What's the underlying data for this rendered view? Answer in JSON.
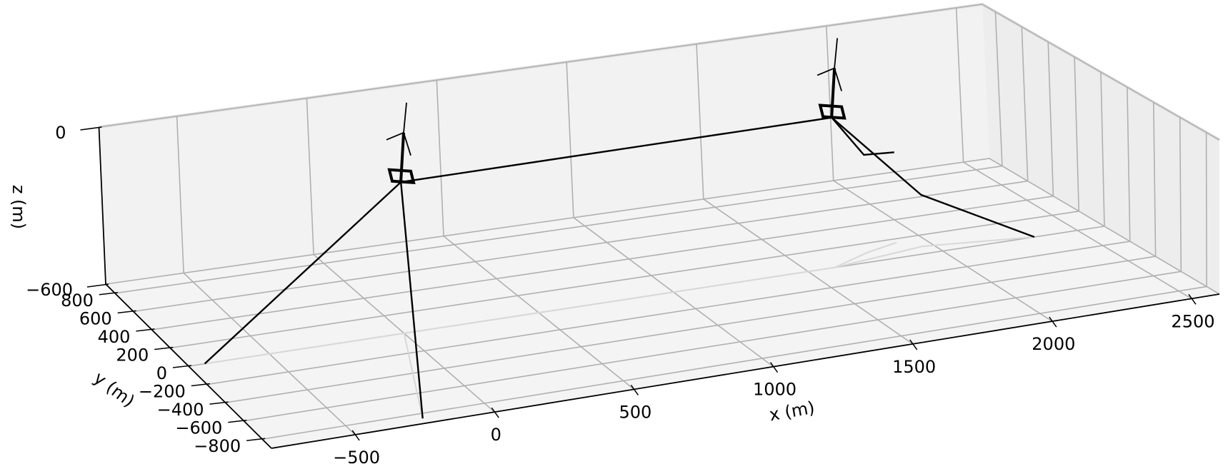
{
  "chart_data": {
    "type": "line3d",
    "xlabel": "x (m)",
    "ylabel": "y (m)",
    "zlabel": "z (m)",
    "xlim": [
      -800,
      2600
    ],
    "ylim": [
      -900,
      900
    ],
    "zlim": [
      -600,
      0
    ],
    "x_ticks": [
      -500,
      0,
      500,
      1000,
      1500,
      2000,
      2500
    ],
    "x_tick_labels": [
      "−500",
      "0",
      "500",
      "1000",
      "1500",
      "2000",
      "2500"
    ],
    "y_ticks": [
      -800,
      -600,
      -400,
      -200,
      0,
      200,
      400,
      600,
      800
    ],
    "y_tick_labels": [
      "−800",
      "−600",
      "−400",
      "−200",
      "0",
      "200",
      "400",
      "600",
      "800"
    ],
    "z_ticks": [
      -600,
      0
    ],
    "z_tick_labels": [
      "−600",
      "0"
    ],
    "grid": true,
    "pane_color": "#f2f2f2",
    "line_color": "#000000",
    "turbines": [
      {
        "x": 0,
        "y": 0,
        "z": 0
      },
      {
        "x": 1600,
        "y": 0,
        "z": 0
      }
    ],
    "mooring_lines": [
      {
        "points": [
          [
            0,
            0,
            -20
          ],
          [
            -740,
            0,
            -600
          ]
        ]
      },
      {
        "points": [
          [
            0,
            0,
            -20
          ],
          [
            -240,
            -850,
            -600
          ]
        ]
      },
      {
        "points": [
          [
            0,
            0,
            -20
          ],
          [
            140,
            0,
            -20
          ],
          [
            1430,
            0,
            -20
          ],
          [
            1600,
            0,
            -20
          ]
        ]
      },
      {
        "points": [
          [
            1600,
            0,
            -20
          ],
          [
            1760,
            100,
            -220
          ],
          [
            1900,
            160,
            -250
          ]
        ]
      },
      {
        "points": [
          [
            1600,
            0,
            -20
          ],
          [
            1960,
            80,
            -400
          ],
          [
            2340,
            0,
            -600
          ]
        ]
      }
    ]
  }
}
